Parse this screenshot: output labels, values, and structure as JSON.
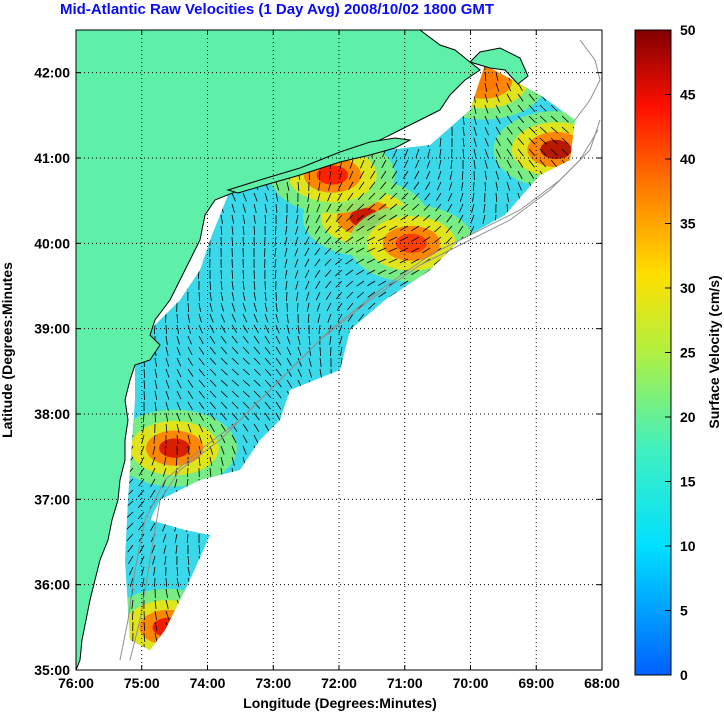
{
  "chart_data": {
    "type": "heatmap",
    "title": "Mid-Atlantic Raw Velocities (1 Day Avg) 2008/10/02 1800 GMT",
    "xlabel": "Longitude (Degrees:Minutes)",
    "ylabel": "Latitude (Degrees:Minutes",
    "x_ticks": [
      "76:00",
      "75:00",
      "74:00",
      "73:00",
      "72:00",
      "71:00",
      "70:00",
      "69:00",
      "68:00"
    ],
    "y_ticks": [
      "42:00",
      "41:00",
      "40:00",
      "39:00",
      "38:00",
      "37:00",
      "36:00",
      "35:00"
    ],
    "xlim": [
      -76,
      -68
    ],
    "ylim": [
      35,
      42.5
    ],
    "grid": true,
    "colorbar": {
      "label": "Surface Velocity (cm/s)",
      "range": [
        0,
        50
      ],
      "ticks": [
        "0",
        "5",
        "10",
        "15",
        "20",
        "25",
        "30",
        "35",
        "40",
        "45",
        "50"
      ]
    },
    "colors": {
      "land": "#5ef0a8",
      "coast_line": "#000000",
      "bathymetry": "#909090",
      "title_color": "#0a0aff"
    },
    "hotspots": [
      {
        "lon": -74.5,
        "lat": 37.6,
        "speed": 46
      },
      {
        "lon": -74.6,
        "lat": 35.5,
        "speed": 45
      },
      {
        "lon": -71.6,
        "lat": 40.3,
        "speed": 47
      },
      {
        "lon": -72.1,
        "lat": 40.8,
        "speed": 44
      },
      {
        "lon": -70.9,
        "lat": 40.0,
        "speed": 42
      },
      {
        "lon": -68.7,
        "lat": 41.1,
        "speed": 48
      },
      {
        "lon": -69.8,
        "lat": 41.9,
        "speed": 38
      }
    ]
  }
}
